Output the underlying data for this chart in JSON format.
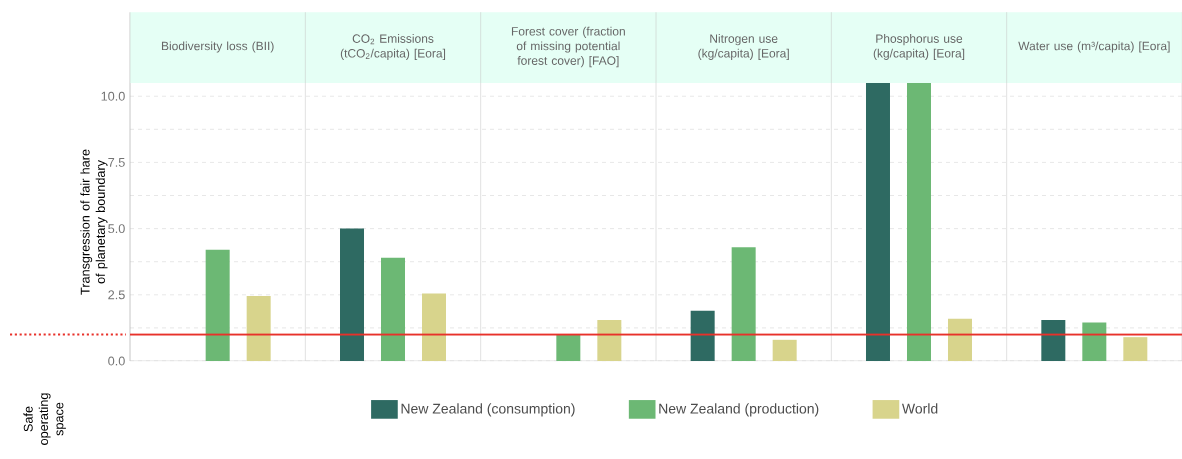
{
  "chart_data": {
    "type": "bar",
    "ylabel": "Transgression of fair hare of planetary boundary",
    "categories": [
      "Biodiversity loss (BII)",
      "CO$_{2}$ Emissions (tCO$_{2}$/capita) [Eora]",
      "Forest cover (fraction of missing potential forest cover) [FAO]",
      "Nitrogen use (kg/capita) [Eora]",
      "Phosphorus use (kg/capita) [Eora]",
      "Water use (m³/capita) [Eora]"
    ],
    "series": [
      {
        "name": "New Zealand (consumption)",
        "color": "#2e6a62",
        "values": [
          null,
          5.0,
          null,
          1.9,
          10.5,
          1.55
        ]
      },
      {
        "name": "New Zealand (production)",
        "color": "#6cb874",
        "values": [
          4.2,
          3.9,
          1.0,
          4.3,
          10.5,
          1.45
        ]
      },
      {
        "name": "World",
        "color": "#d8d48c",
        "values": [
          2.45,
          2.55,
          1.55,
          0.8,
          1.6,
          0.9
        ]
      }
    ],
    "ylim": [
      0,
      10.5
    ],
    "yticks": [
      {
        "value": 0,
        "label": "0.0"
      },
      {
        "value": 1.25,
        "label": null
      },
      2.5,
      {
        "value": 3.75,
        "label": null
      },
      {
        "value": 5,
        "label": "5.0"
      },
      {
        "value": 6.25,
        "label": null
      },
      7.5,
      {
        "value": 8.75,
        "label": null
      },
      {
        "value": 10,
        "label": "10.0"
      }
    ],
    "grid": "y",
    "legend": "bottom",
    "ref_lines": [
      {
        "axis": "y",
        "value": 1,
        "color": "#e8312a"
      }
    ],
    "annotations": [
      "Safe operating space"
    ]
  }
}
